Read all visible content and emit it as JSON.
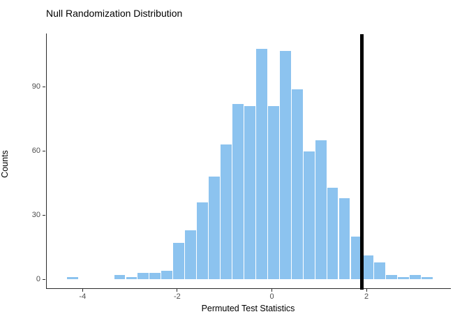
{
  "title": "Null Randomization Distribution",
  "chart_data": {
    "type": "bar",
    "subtype": "histogram",
    "title": "Null Randomization Distribution",
    "xlabel": "Permuted Test Statistics",
    "ylabel": "Counts",
    "x_ticks": [
      -4,
      -2,
      0,
      2
    ],
    "y_ticks": [
      0,
      30,
      60,
      90
    ],
    "xlim": [
      -4.6,
      3.8
    ],
    "ylim": [
      0,
      115
    ],
    "grid": "off",
    "legend": "none",
    "bin_width": 0.25,
    "bin_centers": [
      -4.23,
      -3.98,
      -3.73,
      -3.48,
      -3.23,
      -2.98,
      -2.73,
      -2.48,
      -2.23,
      -1.98,
      -1.73,
      -1.48,
      -1.23,
      -0.98,
      -0.73,
      -0.48,
      -0.23,
      0.02,
      0.27,
      0.52,
      0.77,
      1.02,
      1.27,
      1.52,
      1.77,
      2.02,
      2.27,
      2.52,
      2.77,
      3.02,
      3.27
    ],
    "counts": [
      1,
      0,
      0,
      0,
      2,
      1,
      3,
      3,
      4,
      17,
      23,
      36,
      48,
      63,
      82,
      81,
      108,
      81,
      107,
      89,
      60,
      65,
      43,
      38,
      20,
      11,
      8,
      2,
      1,
      2,
      1
    ],
    "total_count": 1000,
    "observed_stat_vline_x": 1.88,
    "colors": {
      "bar_fill": "#8cc3ef",
      "vline": "#000000",
      "axis_line": "#2b2b2b",
      "tick_label": "#4d4d4d",
      "title_text": "#000000"
    }
  }
}
